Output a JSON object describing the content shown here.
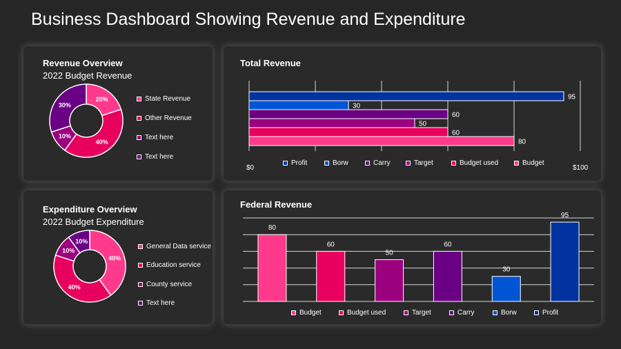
{
  "title": "Business Dashboard Showing Revenue and Expenditure",
  "revenue_overview": {
    "title": "Revenue Overview",
    "subtitle": "2022 Budget Revenue"
  },
  "expenditure_overview": {
    "title": "Expenditure Overview",
    "subtitle": "2022 Budget Expenditure"
  },
  "total_revenue": {
    "title": "Total Revenue"
  },
  "federal_revenue": {
    "title": "Federal  Revenue"
  },
  "colors": {
    "background": "#262626",
    "card": "#2a2a2a",
    "pink": "#ff3a8c",
    "magenta": "#e8005e",
    "purple": "#9b007e",
    "violet": "#6a0083",
    "blue": "#0055d4",
    "navy": "#0033a0"
  },
  "chart_data": [
    {
      "id": "revenue-donut",
      "type": "pie",
      "title": "Revenue Overview",
      "labels": [
        "State Revenue",
        "Other Revenue",
        "Text here",
        "Text here"
      ],
      "values": [
        20,
        40,
        10,
        30
      ],
      "value_labels": [
        "20%",
        "40%",
        "10%",
        "30%"
      ],
      "colors": [
        "#ff3a8c",
        "#e8005e",
        "#9b007e",
        "#6a0083"
      ]
    },
    {
      "id": "expenditure-donut",
      "type": "pie",
      "title": "Expenditure Overview",
      "labels": [
        "General Data service",
        "Education service",
        "County service",
        "Text here"
      ],
      "values": [
        40,
        40,
        10,
        10
      ],
      "value_labels": [
        "40%",
        "40%",
        "10%",
        "10%"
      ],
      "colors": [
        "#ff3a8c",
        "#e8005e",
        "#9b007e",
        "#6a0083"
      ]
    },
    {
      "id": "total-revenue",
      "type": "bar",
      "orientation": "horizontal",
      "title": "Total Revenue",
      "categories": [
        "Profit",
        "Borw",
        "Carry",
        "Target",
        "Budget used",
        "Budget"
      ],
      "values": [
        95,
        30,
        60,
        50,
        60,
        80
      ],
      "colors": [
        "#0033a0",
        "#0055d4",
        "#6a0083",
        "#9b007e",
        "#e8005e",
        "#ff3a8c"
      ],
      "xlim": [
        0,
        100
      ],
      "axis_labels": [
        "$0",
        "$100"
      ],
      "grid": true
    },
    {
      "id": "federal-revenue",
      "type": "bar",
      "orientation": "vertical",
      "title": "Federal  Revenue",
      "categories": [
        "Budget",
        "Budget used",
        "Target",
        "Carry",
        "Borw",
        "Profit"
      ],
      "values": [
        80,
        60,
        50,
        60,
        30,
        95
      ],
      "colors": [
        "#ff3a8c",
        "#e8005e",
        "#9b007e",
        "#6a0083",
        "#0055d4",
        "#0033a0"
      ],
      "ylim": [
        0,
        100
      ],
      "grid": true
    }
  ]
}
